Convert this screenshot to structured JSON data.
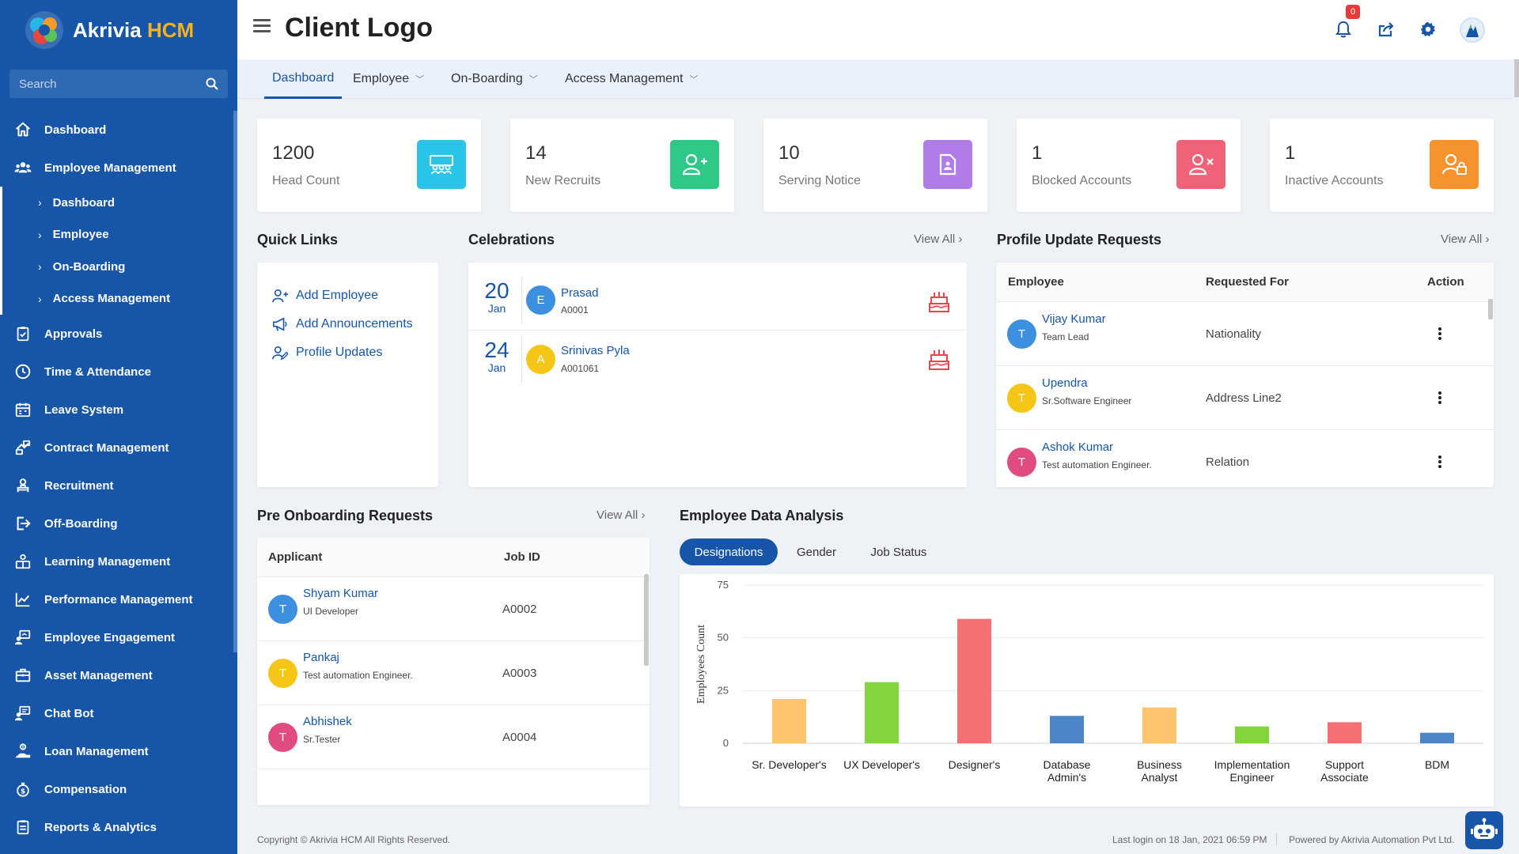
{
  "brand": {
    "name_part1": "Akrivia",
    "name_part2": "HCM"
  },
  "search": {
    "placeholder": "Search"
  },
  "header": {
    "title": "Client Logo",
    "notification_count": "0"
  },
  "sidebar": {
    "items": [
      {
        "label": "Dashboard",
        "icon": "home-icon"
      },
      {
        "label": "Employee Management",
        "icon": "users-icon"
      },
      {
        "label": "Approvals",
        "icon": "clipboard-check-icon"
      },
      {
        "label": "Time & Attendance",
        "icon": "clock-icon"
      },
      {
        "label": "Leave System",
        "icon": "calendar-icon"
      },
      {
        "label": "Contract Management",
        "icon": "contract-icon"
      },
      {
        "label": "Recruitment",
        "icon": "recruitment-icon"
      },
      {
        "label": "Off-Boarding",
        "icon": "exit-icon"
      },
      {
        "label": "Learning Management",
        "icon": "learning-icon"
      },
      {
        "label": "Performance Management",
        "icon": "chart-line-icon"
      },
      {
        "label": "Employee Engagement",
        "icon": "engagement-icon"
      },
      {
        "label": "Asset Management",
        "icon": "asset-icon"
      },
      {
        "label": "Chat Bot",
        "icon": "chat-bot-icon"
      },
      {
        "label": "Loan Management",
        "icon": "loan-icon"
      },
      {
        "label": "Compensation",
        "icon": "compensation-icon"
      },
      {
        "label": "Reports & Analytics",
        "icon": "reports-icon"
      }
    ],
    "subitems": [
      "Dashboard",
      "Employee",
      "On-Boarding",
      "Access Management"
    ]
  },
  "tabs": [
    "Dashboard",
    "Employee",
    "On-Boarding",
    "Access Management"
  ],
  "stats": [
    {
      "value": "1200",
      "label": "Head Count",
      "color": "#29c5e8"
    },
    {
      "value": "14",
      "label": "New Recruits",
      "color": "#2ec986"
    },
    {
      "value": "10",
      "label": "Serving Notice",
      "color": "#b17be8"
    },
    {
      "value": "1",
      "label": "Blocked Accounts",
      "color": "#f06277"
    },
    {
      "value": "1",
      "label": "Inactive Accounts",
      "color": "#f7932f"
    }
  ],
  "quick_links": {
    "title": "Quick Links",
    "items": [
      "Add Employee",
      "Add Announcements",
      "Profile Updates"
    ]
  },
  "celebrations": {
    "title": "Celebrations",
    "view_all": "View All",
    "items": [
      {
        "day": "20",
        "month": "Jan",
        "initial": "E",
        "name": "Prasad",
        "id": "A0001"
      },
      {
        "day": "24",
        "month": "Jan",
        "initial": "A",
        "name": "Srinivas Pyla",
        "id": "A001061"
      }
    ]
  },
  "profile_updates": {
    "title": "Profile Update Requests",
    "view_all": "View All",
    "columns": [
      "Employee",
      "Requested For",
      "Action"
    ],
    "rows": [
      {
        "initial": "T",
        "name": "Vijay Kumar",
        "role": "Team Lead",
        "requested": "Nationality"
      },
      {
        "initial": "T",
        "name": "Upendra",
        "role": "Sr.Software Engineer",
        "requested": "Address Line2"
      },
      {
        "initial": "T",
        "name": "Ashok Kumar",
        "role": "Test automation Engineer.",
        "requested": "Relation"
      }
    ]
  },
  "pre_onboarding": {
    "title": "Pre Onboarding Requests",
    "view_all": "View All",
    "columns": [
      "Applicant",
      "Job ID"
    ],
    "rows": [
      {
        "initial": "T",
        "name": "Shyam Kumar",
        "role": "UI Developer",
        "job_id": "A0002"
      },
      {
        "initial": "T",
        "name": "Pankaj",
        "role": "Test automation Engineer.",
        "job_id": "A0003"
      },
      {
        "initial": "T",
        "name": "Abhishek",
        "role": "Sr.Tester",
        "job_id": "A0004"
      }
    ]
  },
  "analysis": {
    "title": "Employee Data Analysis",
    "tabs": [
      "Designations",
      "Gender",
      "Job Status"
    ]
  },
  "chart_data": {
    "type": "bar",
    "categories": [
      "Sr. Developer's",
      "UX Developer's",
      "Designer's",
      "Database Admin's",
      "Business Analyst",
      "Implementation Engineer",
      "Support Associate",
      "BDM"
    ],
    "category_lines": [
      [
        "Sr. Developer's"
      ],
      [
        "UX Developer's"
      ],
      [
        "Designer's"
      ],
      [
        "Database",
        "Admin's"
      ],
      [
        "Business",
        "Analyst"
      ],
      [
        "Implementation",
        "Engineer"
      ],
      [
        "Support",
        "Associate"
      ],
      [
        "BDM"
      ]
    ],
    "values": [
      21,
      29,
      59,
      13,
      17,
      8,
      10,
      5
    ],
    "colors": [
      "#ffc56e",
      "#84d440",
      "#f37073",
      "#4a86c8",
      "#ffc56e",
      "#84d440",
      "#f37073",
      "#4a86c8"
    ],
    "ylabel": "Employees Count",
    "ylim": [
      0,
      75
    ],
    "yticks": [
      0,
      25,
      50,
      75
    ],
    "grid": true
  },
  "footer": {
    "copyright": "Copyright © Akrivia HCM All Rights Reserved.",
    "last_login": "Last login on 18 Jan, 2021 06:59 PM",
    "powered_by": "Powered by Akrivia Automation Pvt Ltd."
  }
}
